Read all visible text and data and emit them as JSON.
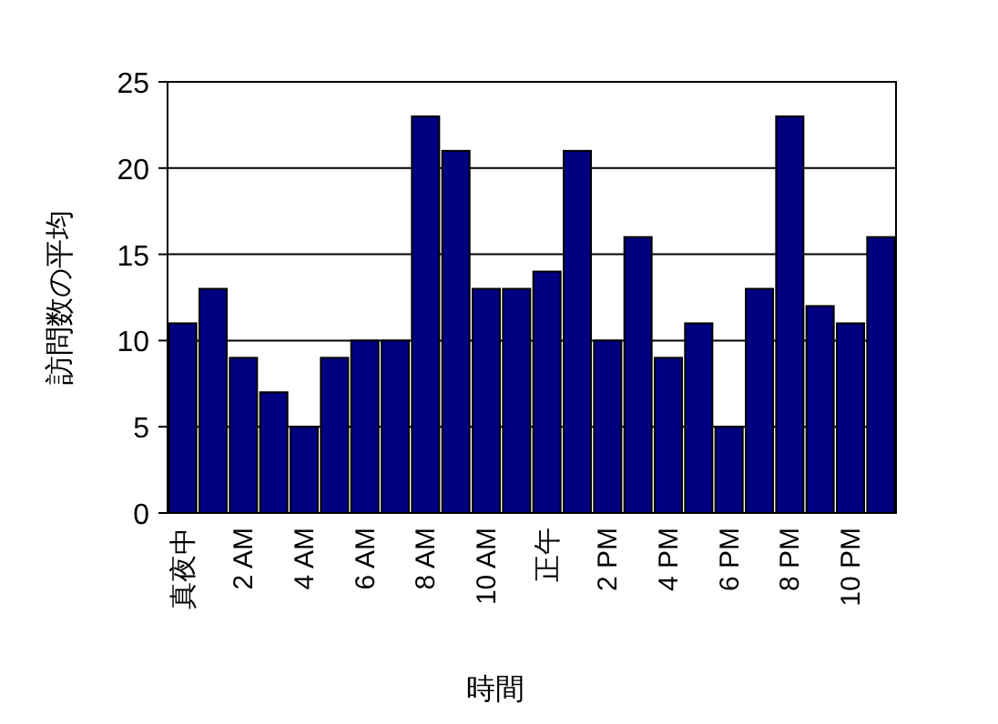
{
  "chart_data": {
    "type": "bar",
    "xlabel": "時間",
    "ylabel": "訪問数の平均",
    "categories": [
      "真夜中",
      null,
      "2 AM",
      null,
      "4 AM",
      null,
      "6 AM",
      null,
      "8 AM",
      null,
      "10 AM",
      null,
      "正午",
      null,
      "2 PM",
      null,
      "4 PM",
      null,
      "6 PM",
      null,
      "8 PM",
      null,
      "10 PM",
      null
    ],
    "values": [
      11,
      13,
      9,
      7,
      5,
      9,
      10,
      10,
      23,
      21,
      13,
      13,
      14,
      21,
      10,
      16,
      9,
      11,
      5,
      13,
      23,
      12,
      11,
      16
    ],
    "color": "#000080",
    "ylim": [
      0,
      25
    ],
    "yticks": [
      0,
      5,
      10,
      15,
      20,
      25
    ],
    "grid": "y"
  }
}
